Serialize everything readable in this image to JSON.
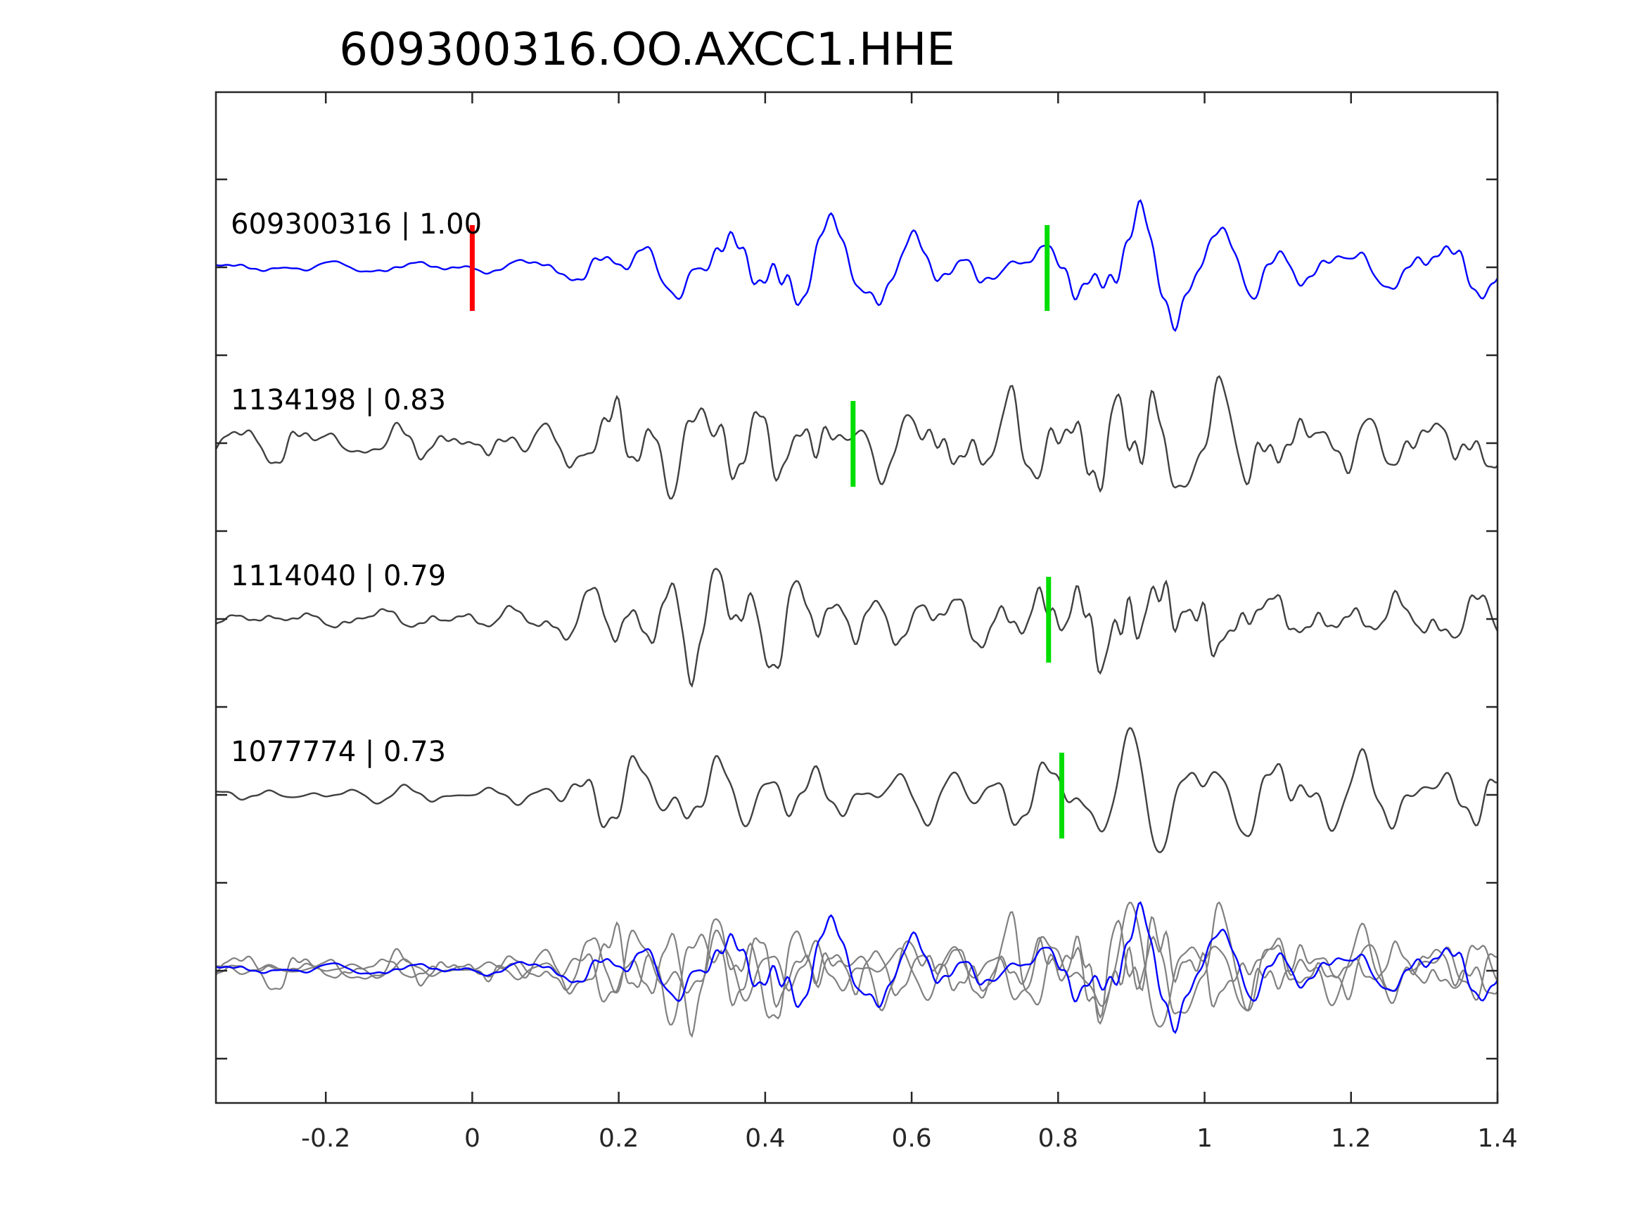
{
  "chart_data": {
    "type": "line",
    "title": "609300316.OO.AXCC1.HHE",
    "xlabel": "",
    "ylabel": "",
    "xlim": [
      -0.35,
      1.4
    ],
    "xticks": [
      -0.2,
      0,
      0.2,
      0.4,
      0.6,
      0.8,
      1,
      1.2,
      1.4
    ],
    "xtick_labels": [
      "-0.2",
      "0",
      "0.2",
      "0.4",
      "0.6",
      "0.8",
      "1",
      "1.2",
      "1.4"
    ],
    "grid": false,
    "colors": {
      "reference": "#0000ff",
      "trace": "#404040",
      "overlay": "#808080",
      "red_pick": "#ff0000",
      "green_pick": "#00dd00",
      "axes": "#262626"
    },
    "reference_pick_time": 0.0,
    "series": [
      {
        "id": "609300316",
        "label": "609300316 | 1.00",
        "cc": 1.0,
        "color": "blue",
        "pick_time": 0.785,
        "seed": 11,
        "env": [
          [
            -0.35,
            0.12
          ],
          [
            0.0,
            0.12
          ],
          [
            0.08,
            0.18
          ],
          [
            0.15,
            0.35
          ],
          [
            0.25,
            0.75
          ],
          [
            0.34,
            1.0
          ],
          [
            0.5,
            0.85
          ],
          [
            0.7,
            0.55
          ],
          [
            0.85,
            0.9
          ],
          [
            0.95,
            1.0
          ],
          [
            1.05,
            0.75
          ],
          [
            1.2,
            0.55
          ],
          [
            1.4,
            0.5
          ]
        ]
      },
      {
        "id": "1134198",
        "label": "1134198 | 0.83",
        "cc": 0.83,
        "color": "gray",
        "pick_time": 0.52,
        "seed": 23,
        "env": [
          [
            -0.35,
            0.22
          ],
          [
            0.05,
            0.25
          ],
          [
            0.15,
            0.35
          ],
          [
            0.25,
            0.9
          ],
          [
            0.4,
            0.7
          ],
          [
            0.6,
            0.4
          ],
          [
            0.78,
            0.8
          ],
          [
            0.85,
            1.0
          ],
          [
            0.95,
            1.0
          ],
          [
            1.05,
            0.6
          ],
          [
            1.2,
            0.45
          ],
          [
            1.4,
            0.4
          ]
        ]
      },
      {
        "id": "1114040",
        "label": "1114040 | 0.79",
        "cc": 0.79,
        "color": "gray",
        "pick_time": 0.787,
        "seed": 37,
        "env": [
          [
            -0.35,
            0.12
          ],
          [
            0.05,
            0.15
          ],
          [
            0.15,
            0.3
          ],
          [
            0.3,
            0.7
          ],
          [
            0.45,
            0.5
          ],
          [
            0.6,
            0.3
          ],
          [
            0.75,
            0.5
          ],
          [
            0.85,
            1.0
          ],
          [
            0.98,
            1.0
          ],
          [
            1.05,
            0.5
          ],
          [
            1.2,
            0.35
          ],
          [
            1.4,
            0.3
          ]
        ]
      },
      {
        "id": "1077774",
        "label": "1077774 | 0.73",
        "cc": 0.73,
        "color": "gray",
        "pick_time": 0.805,
        "seed": 53,
        "env": [
          [
            -0.35,
            0.15
          ],
          [
            0.05,
            0.2
          ],
          [
            0.15,
            0.5
          ],
          [
            0.25,
            1.0
          ],
          [
            0.4,
            0.75
          ],
          [
            0.6,
            0.6
          ],
          [
            0.78,
            0.8
          ],
          [
            0.9,
            1.0
          ],
          [
            1.05,
            0.9
          ],
          [
            1.2,
            0.65
          ],
          [
            1.4,
            0.6
          ]
        ]
      }
    ]
  }
}
